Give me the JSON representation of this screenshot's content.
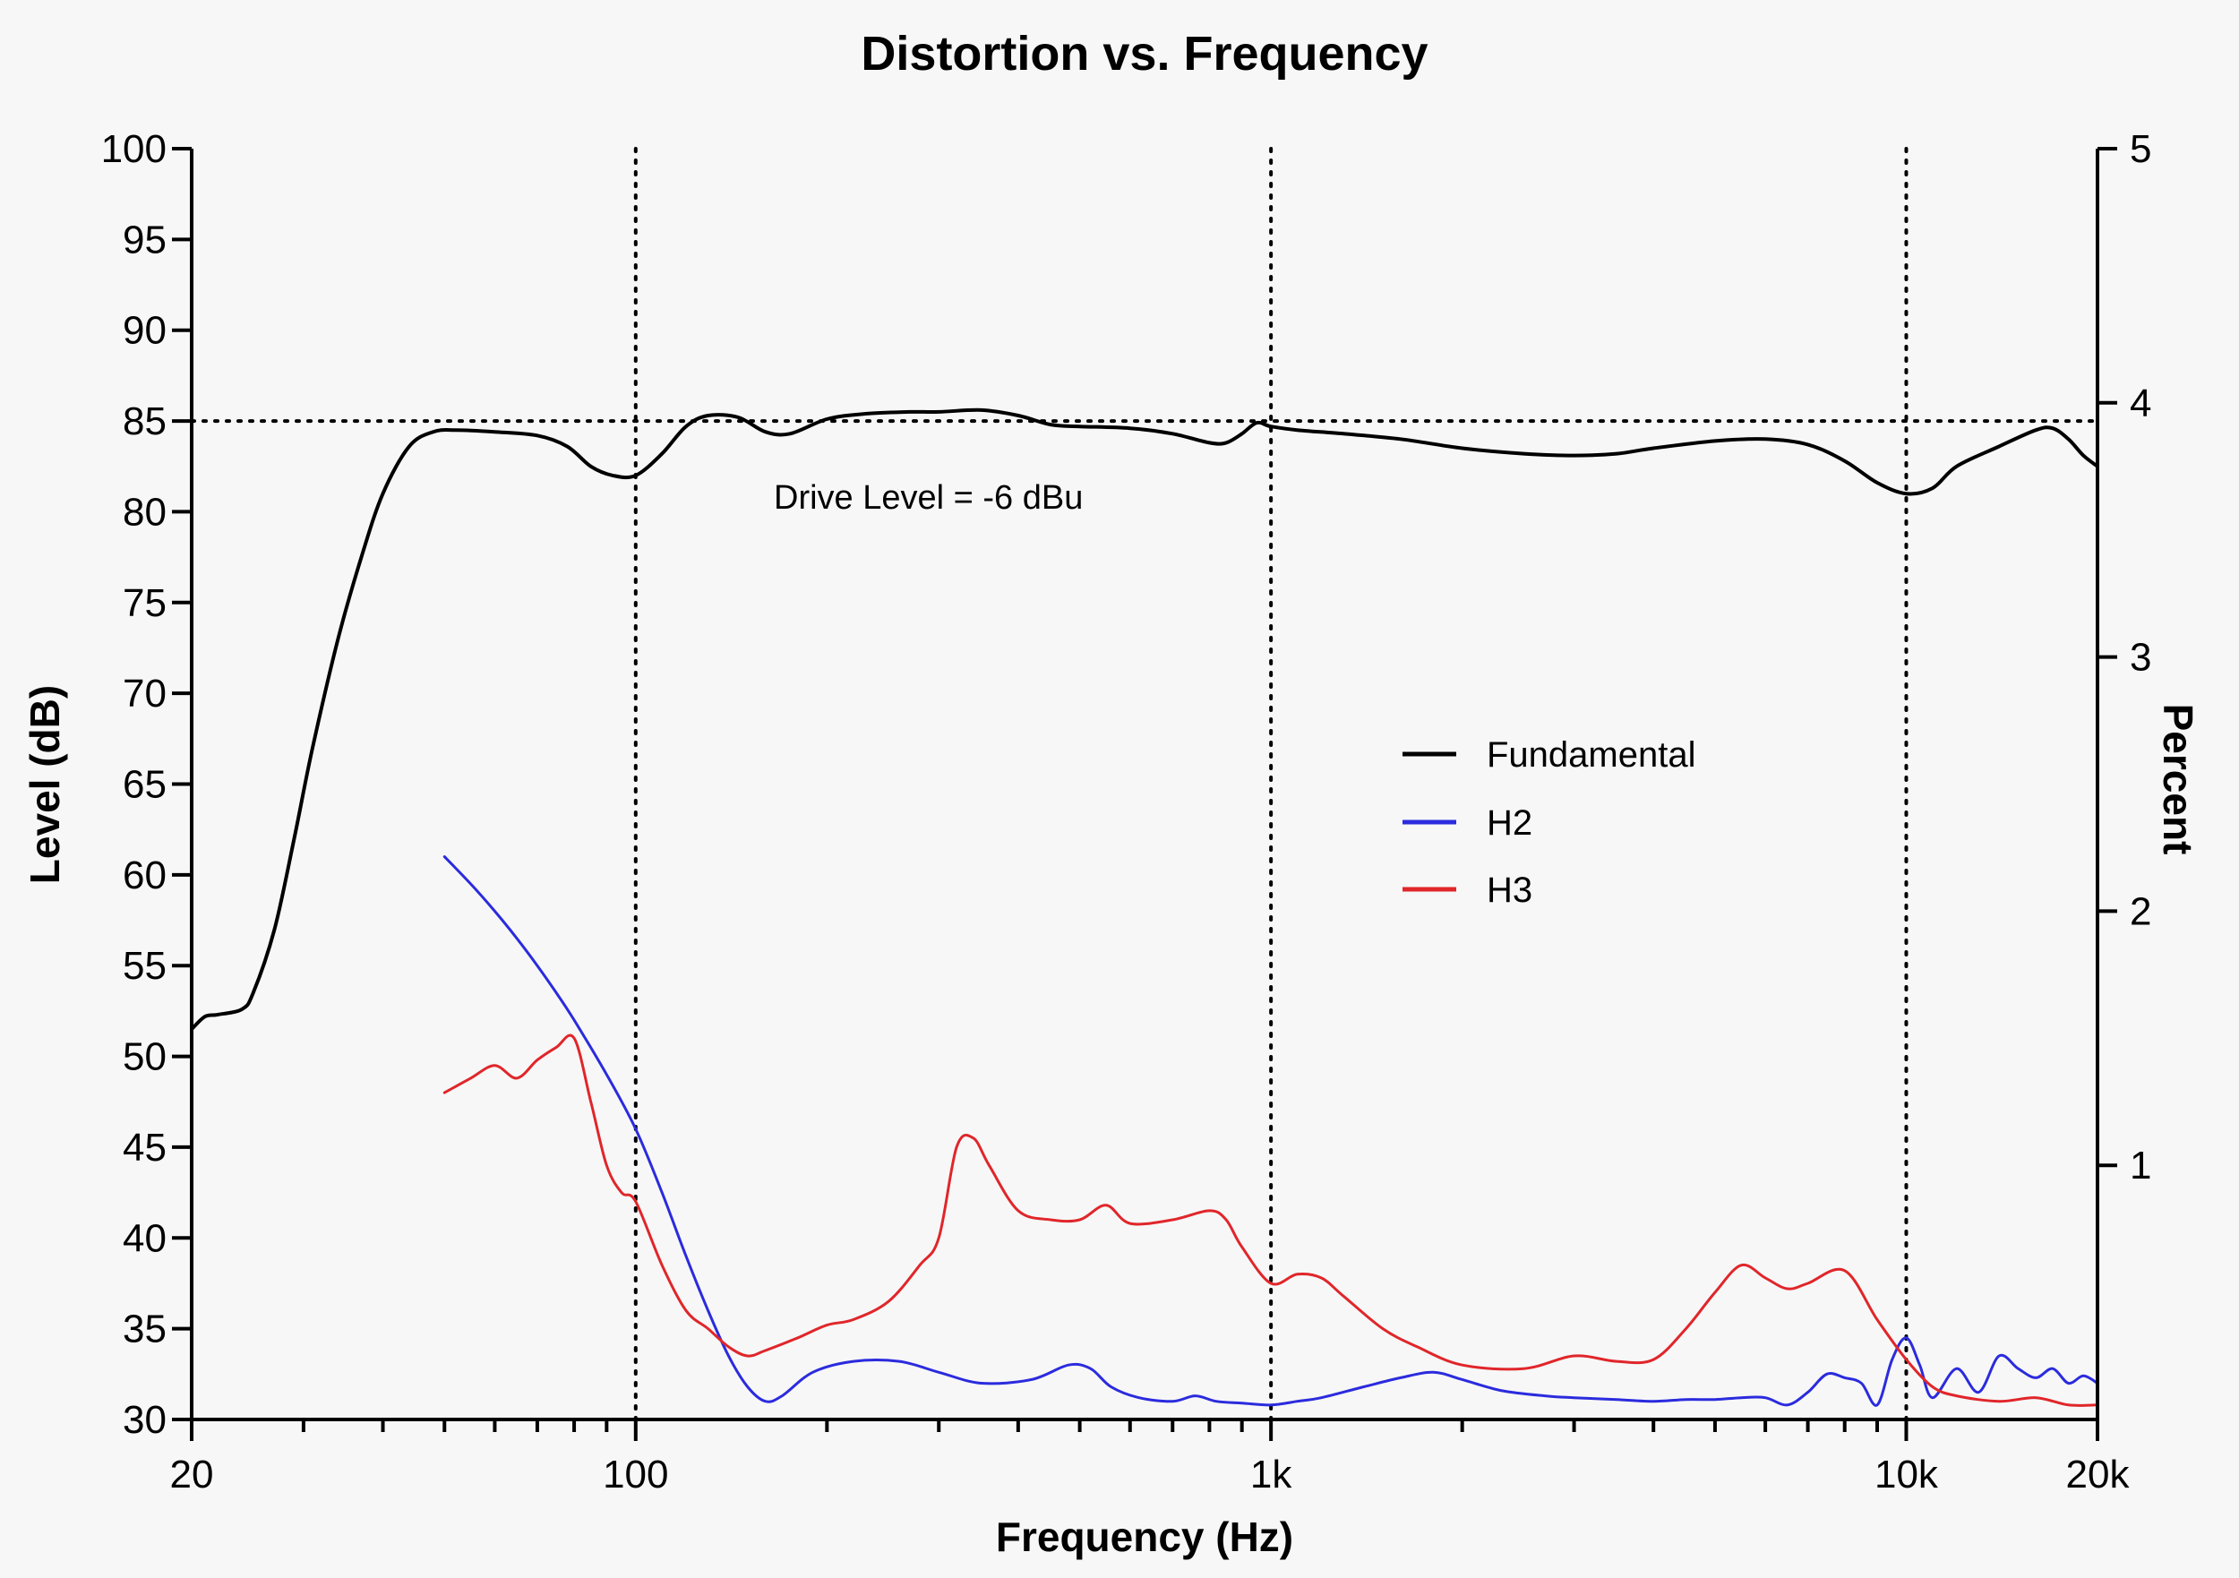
{
  "chart_data": {
    "type": "line",
    "title": "Distortion vs. Frequency",
    "xlabel": "Frequency (Hz)",
    "ylabel": "Level (dB)",
    "y2label": "Percent",
    "xscale": "log",
    "xlim": [
      20,
      20000
    ],
    "ylim": [
      30,
      100
    ],
    "y2lim": [
      0,
      5
    ],
    "xticks": [
      20,
      100,
      1000,
      10000,
      20000
    ],
    "xtick_labels": [
      "20",
      "100",
      "1k",
      "10k",
      "20k"
    ],
    "yticks": [
      30,
      35,
      40,
      45,
      50,
      55,
      60,
      65,
      70,
      75,
      80,
      85,
      90,
      95,
      100
    ],
    "y2ticks": [
      1,
      2,
      3,
      4,
      5
    ],
    "reference_lines": {
      "x": [
        100,
        1000,
        10000
      ],
      "y": [
        85
      ]
    },
    "annotation": "Drive Level = -6 dBu",
    "legend_position": "center-right",
    "colors": {
      "Fundamental": "#000000",
      "H2": "#2b2bde",
      "H3": "#e0262a"
    },
    "series": [
      {
        "name": "Fundamental",
        "points": [
          [
            20,
            51.5
          ],
          [
            21,
            52.2
          ],
          [
            22,
            52.3
          ],
          [
            24,
            52.6
          ],
          [
            25,
            53.5
          ],
          [
            27,
            57
          ],
          [
            29,
            62
          ],
          [
            31,
            67
          ],
          [
            34,
            73
          ],
          [
            37,
            77.5
          ],
          [
            40,
            81
          ],
          [
            44,
            83.6
          ],
          [
            48,
            84.4
          ],
          [
            52,
            84.5
          ],
          [
            60,
            84.4
          ],
          [
            70,
            84.2
          ],
          [
            78,
            83.6
          ],
          [
            85,
            82.5
          ],
          [
            92,
            82.0
          ],
          [
            100,
            82.0
          ],
          [
            110,
            83.2
          ],
          [
            120,
            84.7
          ],
          [
            130,
            85.3
          ],
          [
            145,
            85.2
          ],
          [
            160,
            84.4
          ],
          [
            175,
            84.3
          ],
          [
            200,
            85.1
          ],
          [
            230,
            85.4
          ],
          [
            270,
            85.5
          ],
          [
            300,
            85.5
          ],
          [
            350,
            85.6
          ],
          [
            400,
            85.3
          ],
          [
            450,
            84.8
          ],
          [
            500,
            84.7
          ],
          [
            600,
            84.6
          ],
          [
            700,
            84.3
          ],
          [
            800,
            83.8
          ],
          [
            850,
            83.8
          ],
          [
            900,
            84.3
          ],
          [
            950,
            84.9
          ],
          [
            1000,
            84.7
          ],
          [
            1100,
            84.5
          ],
          [
            1300,
            84.3
          ],
          [
            1600,
            84.0
          ],
          [
            2000,
            83.5
          ],
          [
            2500,
            83.2
          ],
          [
            3000,
            83.1
          ],
          [
            3500,
            83.2
          ],
          [
            4000,
            83.5
          ],
          [
            5000,
            83.9
          ],
          [
            6000,
            84.0
          ],
          [
            7000,
            83.7
          ],
          [
            8000,
            82.8
          ],
          [
            9000,
            81.6
          ],
          [
            10000,
            81.0
          ],
          [
            11000,
            81.3
          ],
          [
            12000,
            82.5
          ],
          [
            14000,
            83.6
          ],
          [
            16000,
            84.5
          ],
          [
            17000,
            84.6
          ],
          [
            18000,
            84.0
          ],
          [
            19000,
            83.1
          ],
          [
            20000,
            82.5
          ]
        ]
      },
      {
        "name": "H2",
        "points": [
          [
            50,
            61.0
          ],
          [
            55,
            59.5
          ],
          [
            60,
            58.0
          ],
          [
            65,
            56.5
          ],
          [
            70,
            55.0
          ],
          [
            75,
            53.5
          ],
          [
            80,
            52.0
          ],
          [
            90,
            49.0
          ],
          [
            100,
            46.0
          ],
          [
            110,
            42.5
          ],
          [
            120,
            39.0
          ],
          [
            130,
            36.0
          ],
          [
            140,
            33.5
          ],
          [
            150,
            31.8
          ],
          [
            160,
            31.0
          ],
          [
            170,
            31.3
          ],
          [
            190,
            32.6
          ],
          [
            220,
            33.2
          ],
          [
            260,
            33.2
          ],
          [
            300,
            32.6
          ],
          [
            350,
            32.0
          ],
          [
            420,
            32.2
          ],
          [
            480,
            33.0
          ],
          [
            520,
            32.8
          ],
          [
            560,
            31.8
          ],
          [
            620,
            31.2
          ],
          [
            700,
            31.0
          ],
          [
            760,
            31.3
          ],
          [
            820,
            31.0
          ],
          [
            900,
            30.9
          ],
          [
            1000,
            30.8
          ],
          [
            1100,
            31.0
          ],
          [
            1200,
            31.2
          ],
          [
            1400,
            31.8
          ],
          [
            1600,
            32.3
          ],
          [
            1800,
            32.6
          ],
          [
            2000,
            32.2
          ],
          [
            2300,
            31.6
          ],
          [
            2700,
            31.3
          ],
          [
            3000,
            31.2
          ],
          [
            3500,
            31.1
          ],
          [
            4000,
            31.0
          ],
          [
            4500,
            31.1
          ],
          [
            5000,
            31.1
          ],
          [
            5500,
            31.2
          ],
          [
            6000,
            31.2
          ],
          [
            6500,
            30.8
          ],
          [
            7000,
            31.5
          ],
          [
            7500,
            32.5
          ],
          [
            8000,
            32.3
          ],
          [
            8500,
            32.0
          ],
          [
            9000,
            30.8
          ],
          [
            9500,
            33.3
          ],
          [
            10000,
            34.5
          ],
          [
            10500,
            33.0
          ],
          [
            11000,
            31.2
          ],
          [
            12000,
            32.8
          ],
          [
            13000,
            31.5
          ],
          [
            14000,
            33.5
          ],
          [
            15000,
            32.8
          ],
          [
            16000,
            32.3
          ],
          [
            17000,
            32.8
          ],
          [
            18000,
            32.0
          ],
          [
            19000,
            32.4
          ],
          [
            20000,
            32.0
          ]
        ]
      },
      {
        "name": "H3",
        "points": [
          [
            50,
            48.0
          ],
          [
            55,
            48.8
          ],
          [
            60,
            49.5
          ],
          [
            65,
            48.8
          ],
          [
            70,
            49.8
          ],
          [
            75,
            50.5
          ],
          [
            80,
            51.0
          ],
          [
            85,
            47.5
          ],
          [
            90,
            44.0
          ],
          [
            95,
            42.5
          ],
          [
            100,
            42.0
          ],
          [
            110,
            38.5
          ],
          [
            120,
            36.0
          ],
          [
            130,
            35.0
          ],
          [
            140,
            34.0
          ],
          [
            150,
            33.5
          ],
          [
            160,
            33.8
          ],
          [
            180,
            34.5
          ],
          [
            200,
            35.2
          ],
          [
            220,
            35.5
          ],
          [
            250,
            36.5
          ],
          [
            280,
            38.5
          ],
          [
            300,
            40.0
          ],
          [
            320,
            45.0
          ],
          [
            340,
            45.5
          ],
          [
            360,
            44.0
          ],
          [
            400,
            41.5
          ],
          [
            450,
            41.0
          ],
          [
            500,
            41.0
          ],
          [
            550,
            41.8
          ],
          [
            600,
            40.8
          ],
          [
            700,
            41.0
          ],
          [
            800,
            41.5
          ],
          [
            850,
            41.0
          ],
          [
            900,
            39.5
          ],
          [
            1000,
            37.5
          ],
          [
            1100,
            38.0
          ],
          [
            1200,
            37.8
          ],
          [
            1300,
            36.8
          ],
          [
            1500,
            35.0
          ],
          [
            1700,
            34.0
          ],
          [
            2000,
            33.0
          ],
          [
            2500,
            32.8
          ],
          [
            3000,
            33.5
          ],
          [
            3500,
            33.2
          ],
          [
            4000,
            33.3
          ],
          [
            4500,
            35.0
          ],
          [
            5000,
            37.0
          ],
          [
            5500,
            38.5
          ],
          [
            6000,
            37.8
          ],
          [
            6500,
            37.2
          ],
          [
            7000,
            37.5
          ],
          [
            8000,
            38.2
          ],
          [
            9000,
            35.5
          ],
          [
            10000,
            33.3
          ],
          [
            11000,
            31.8
          ],
          [
            12000,
            31.3
          ],
          [
            14000,
            31.0
          ],
          [
            16000,
            31.2
          ],
          [
            18000,
            30.8
          ],
          [
            20000,
            30.8
          ]
        ]
      }
    ]
  }
}
